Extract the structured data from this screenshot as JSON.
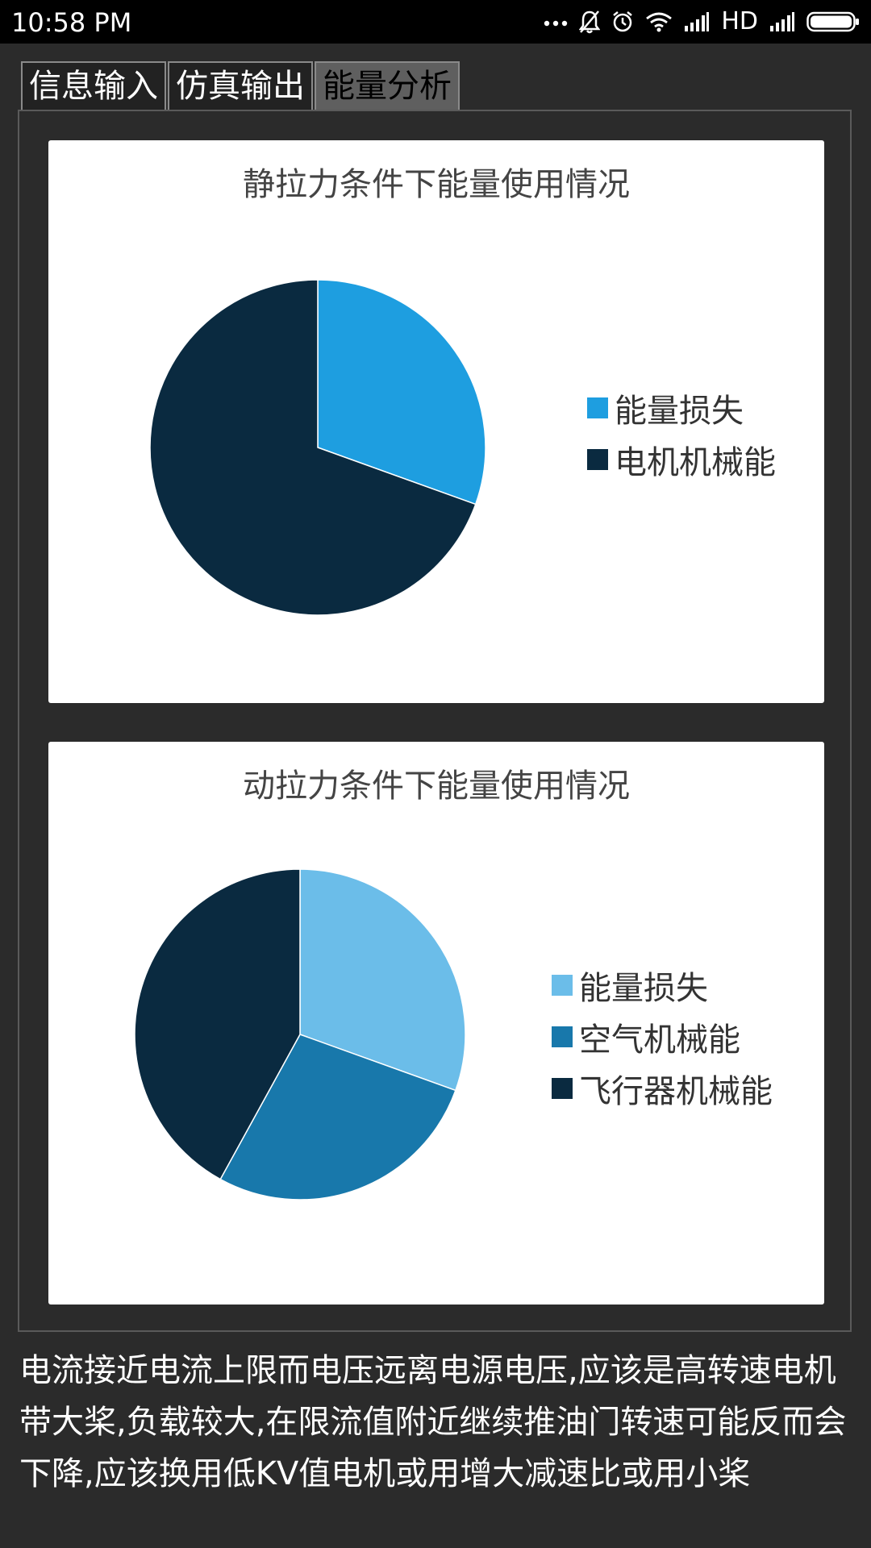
{
  "status_bar": {
    "time": "10:58 PM",
    "network": "HD"
  },
  "tabs": [
    {
      "label": "信息输入",
      "active": false
    },
    {
      "label": "仿真输出",
      "active": false
    },
    {
      "label": "能量分析",
      "active": true
    }
  ],
  "charts": {
    "static": {
      "title": "静拉力条件下能量使用情况",
      "legend": [
        "能量损失",
        "电机机械能"
      ]
    },
    "dynamic": {
      "title": "动拉力条件下能量使用情况",
      "legend": [
        "能量损失",
        "空气机械能",
        "飞行器机械能"
      ]
    }
  },
  "description": "电流接近电流上限而电压远离电源电压,应该是高转速电机带大桨,负载较大,在限流值附近继续推油门转速可能反而会下降,应该换用低KV值电机或用增大减速比或用小桨",
  "colors": {
    "light_blue": "#6bbde9",
    "blue": "#1e9ee0",
    "mid_blue": "#1878ab",
    "navy": "#0a2a40"
  },
  "chart_data": [
    {
      "type": "pie",
      "title": "静拉力条件下能量使用情况",
      "series": [
        {
          "name": "能量损失",
          "value": 30.5,
          "color": "#1e9ee0"
        },
        {
          "name": "电机机械能",
          "value": 69.5,
          "color": "#0a2a40"
        }
      ]
    },
    {
      "type": "pie",
      "title": "动拉力条件下能量使用情况",
      "series": [
        {
          "name": "能量损失",
          "value": 30.5,
          "color": "#6bbde9"
        },
        {
          "name": "空气机械能",
          "value": 27.5,
          "color": "#1878ab"
        },
        {
          "name": "飞行器机械能",
          "value": 42.0,
          "color": "#0a2a40"
        }
      ]
    }
  ]
}
